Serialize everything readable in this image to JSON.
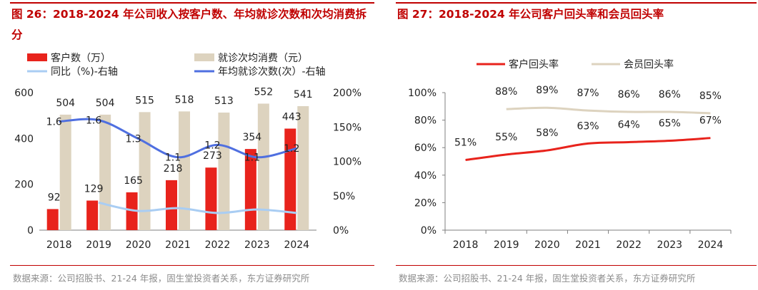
{
  "left": {
    "title": "图 26：2018-2024 年公司收入按客户数、年均就诊次数和次均消费拆分",
    "source": "数据来源：公司招股书、21-24 年报，固生堂投资者关系，东方证券研究所",
    "colors": {
      "customers": "#e8231c",
      "spend": "#ddd3bf",
      "yoy": "#a9cdf3",
      "visits": "#4f6fe0"
    },
    "chart_data": {
      "type": "bar",
      "categories": [
        "2018",
        "2019",
        "2020",
        "2021",
        "2022",
        "2023",
        "2024"
      ],
      "series": [
        {
          "name": "客户数（万）",
          "kind": "bar",
          "axis": "left",
          "values": [
            92,
            129,
            165,
            218,
            273,
            354,
            443
          ],
          "labels": [
            "92",
            "129",
            "165",
            "218",
            "273",
            "354",
            "443"
          ]
        },
        {
          "name": "就诊次均消费（元）",
          "kind": "bar",
          "axis": "left",
          "values": [
            504,
            504,
            515,
            518,
            513,
            552,
            541
          ],
          "labels": [
            "504",
            "504",
            "515",
            "518",
            "513",
            "552",
            "541"
          ]
        },
        {
          "name": "同比（%)-右轴",
          "kind": "line",
          "axis": "right",
          "values": [
            null,
            40,
            28,
            32,
            25,
            30,
            25
          ]
        },
        {
          "name": "年均就诊次数(次）-右轴",
          "kind": "line",
          "axis": "right",
          "values": [
            158,
            160,
            133,
            106,
            124,
            106,
            119
          ],
          "labels": [
            "1.6",
            "1.6",
            "1.3",
            "1.1",
            "1.2",
            "1.1",
            "1.2"
          ]
        }
      ],
      "y_left": {
        "min": 0,
        "max": 600,
        "ticks": [
          "0",
          "200",
          "400",
          "600"
        ]
      },
      "y_right": {
        "min": 0,
        "max": 200,
        "ticks": [
          "0%",
          "50%",
          "100%",
          "150%",
          "200%"
        ]
      },
      "grid": false,
      "legend": "top"
    }
  },
  "right": {
    "title": "图 27：2018-2024 年公司客户回头率和会员回头率",
    "source": "数据来源：公司招股书、21-24 年报，固生堂投资者关系，东方证券研究所",
    "colors": {
      "customer": "#e8231c",
      "member": "#ddd3bf"
    },
    "chart_data": {
      "type": "line",
      "categories": [
        "2018",
        "2019",
        "2020",
        "2021",
        "2022",
        "2023",
        "2024"
      ],
      "series": [
        {
          "name": "客户回头率",
          "values": [
            51,
            55,
            58,
            63,
            64,
            65,
            67
          ],
          "labels": [
            "51%",
            "55%",
            "58%",
            "63%",
            "64%",
            "65%",
            "67%"
          ]
        },
        {
          "name": "会员回头率",
          "values": [
            null,
            88,
            89,
            87,
            86,
            86,
            85
          ],
          "labels": [
            "",
            "88%",
            "89%",
            "87%",
            "86%",
            "86%",
            "85%"
          ]
        }
      ],
      "y": {
        "min": 0,
        "max": 100,
        "ticks": [
          "0%",
          "20%",
          "40%",
          "60%",
          "80%",
          "100%"
        ]
      },
      "grid": false,
      "legend": "top"
    }
  }
}
